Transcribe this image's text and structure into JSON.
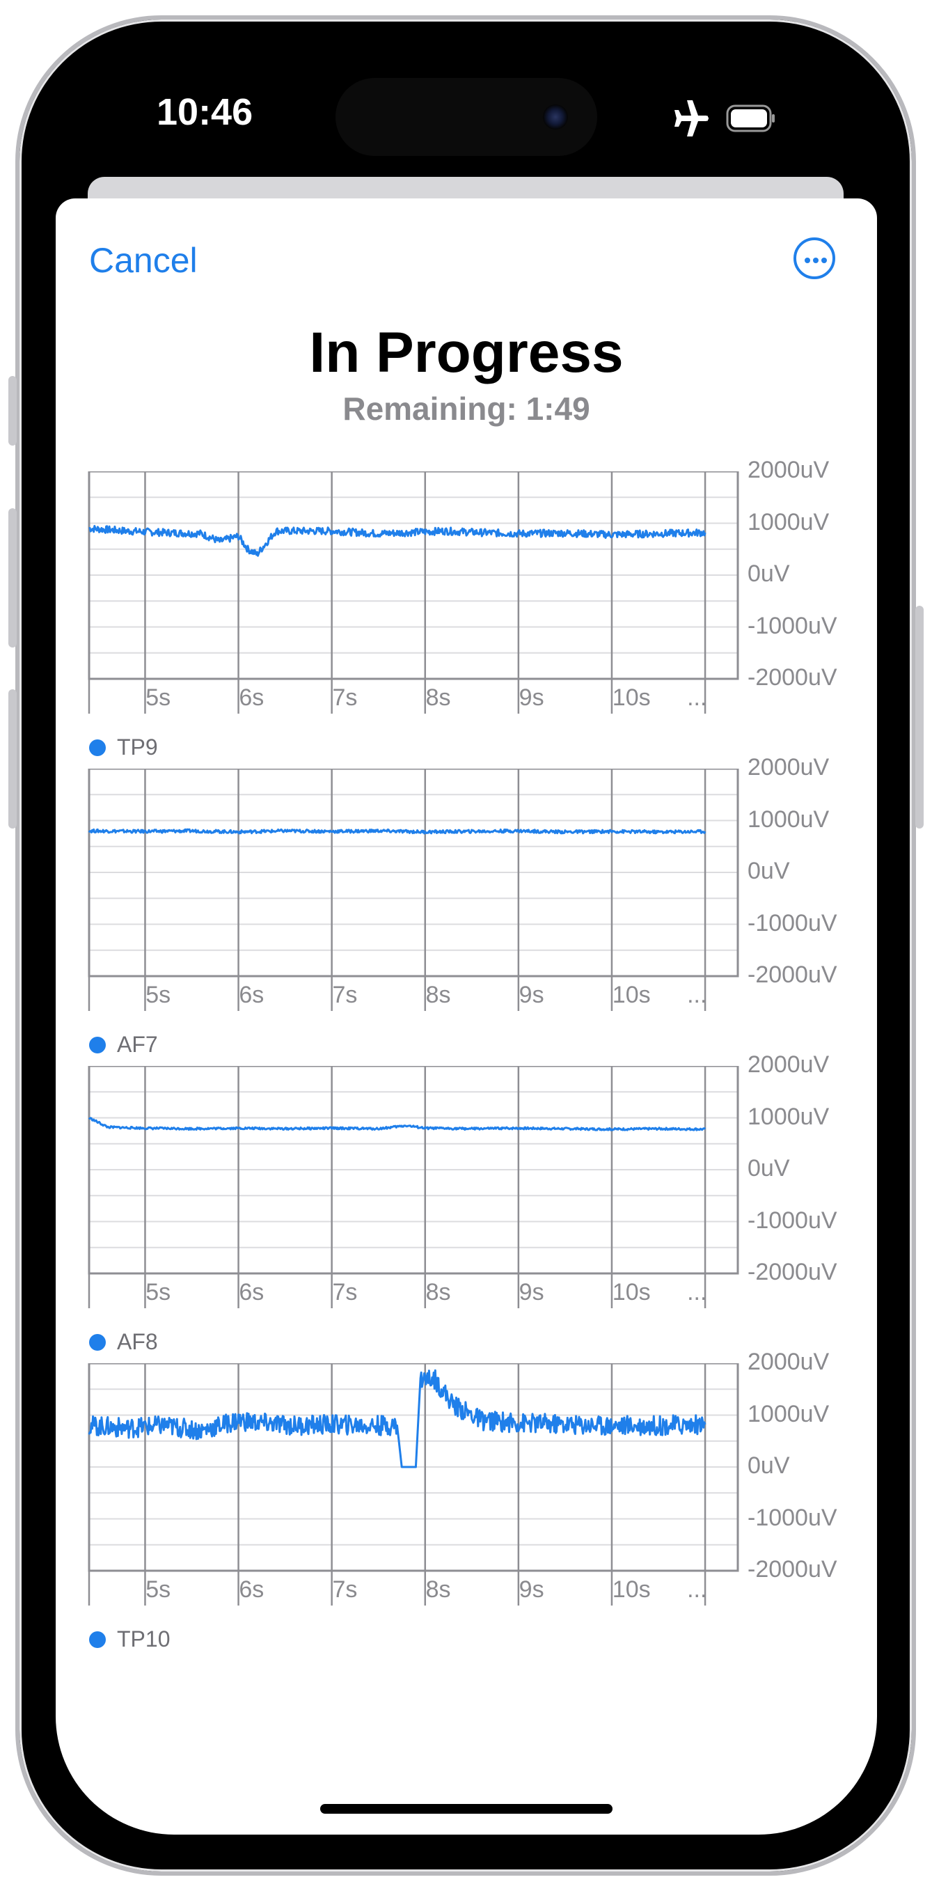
{
  "status": {
    "time": "10:46",
    "icons": [
      "airplane-icon",
      "battery-icon"
    ]
  },
  "nav": {
    "cancel_label": "Cancel",
    "more_icon": "ellipsis-circle-icon"
  },
  "header": {
    "title": "In Progress",
    "subtitle": "Remaining: 1:49"
  },
  "accent_color": "#1f7fea",
  "charts": [
    {
      "channel": "TP9"
    },
    {
      "channel": "AF7"
    },
    {
      "channel": "AF8"
    },
    {
      "channel": "TP10"
    }
  ],
  "chart_data": [
    {
      "type": "line",
      "x_ticks": [
        "5s",
        "6s",
        "7s",
        "8s",
        "9s",
        "10s",
        "..."
      ],
      "y_ticks": [
        "2000uV",
        "1000uV",
        "0uV",
        "-1000uV",
        "-2000uV"
      ],
      "ylim": [
        -2000,
        2000
      ],
      "grid": true,
      "series": [
        {
          "name": "TP9",
          "color": "#1f7fea",
          "x": [
            4.4,
            4.8,
            5.2,
            5.6,
            5.8,
            6.0,
            6.1,
            6.2,
            6.4,
            7.0,
            7.5,
            7.8,
            8.2,
            8.6,
            9.0,
            9.5,
            10.0,
            10.5,
            11.0
          ],
          "y": [
            900,
            850,
            820,
            800,
            650,
            750,
            500,
            400,
            850,
            850,
            800,
            820,
            850,
            820,
            800,
            810,
            780,
            800,
            820
          ]
        }
      ]
    },
    {
      "type": "line",
      "x_ticks": [
        "5s",
        "6s",
        "7s",
        "8s",
        "9s",
        "10s",
        "..."
      ],
      "y_ticks": [
        "2000uV",
        "1000uV",
        "0uV",
        "-1000uV",
        "-2000uV"
      ],
      "ylim": [
        -2000,
        2000
      ],
      "grid": true,
      "series": [
        {
          "name": "AF7",
          "color": "#1f7fea",
          "x": [
            4.4,
            5.0,
            5.5,
            6.0,
            6.5,
            7.0,
            7.5,
            8.0,
            8.5,
            9.0,
            9.5,
            10.0,
            10.5,
            11.0
          ],
          "y": [
            800,
            790,
            800,
            780,
            800,
            790,
            800,
            780,
            790,
            800,
            780,
            790,
            780,
            790
          ]
        }
      ]
    },
    {
      "type": "line",
      "x_ticks": [
        "5s",
        "6s",
        "7s",
        "8s",
        "9s",
        "10s",
        "..."
      ],
      "y_ticks": [
        "2000uV",
        "1000uV",
        "0uV",
        "-1000uV",
        "-2000uV"
      ],
      "ylim": [
        -2000,
        2000
      ],
      "grid": true,
      "series": [
        {
          "name": "AF8",
          "color": "#1f7fea",
          "x": [
            4.4,
            4.6,
            5.0,
            5.5,
            6.0,
            6.5,
            7.0,
            7.5,
            7.8,
            8.0,
            8.5,
            9.0,
            9.5,
            10.0,
            10.5,
            11.0
          ],
          "y": [
            1000,
            820,
            800,
            790,
            800,
            790,
            800,
            790,
            850,
            800,
            790,
            800,
            790,
            780,
            790,
            780
          ]
        }
      ]
    },
    {
      "type": "line",
      "x_ticks": [
        "5s",
        "6s",
        "7s",
        "8s",
        "9s",
        "10s",
        "..."
      ],
      "y_ticks": [
        "2000uV",
        "1000uV",
        "0uV",
        "-1000uV",
        "-2000uV"
      ],
      "ylim": [
        -2000,
        2000
      ],
      "grid": true,
      "series": [
        {
          "name": "TP10",
          "color": "#1f7fea",
          "x": [
            4.4,
            4.8,
            5.2,
            5.6,
            6.0,
            6.2,
            6.6,
            7.0,
            7.4,
            7.7,
            7.75,
            7.9,
            7.95,
            8.1,
            8.3,
            8.6,
            9.0,
            9.5,
            10.0,
            10.5,
            11.0
          ],
          "y": [
            800,
            750,
            800,
            700,
            900,
            850,
            800,
            820,
            800,
            800,
            0,
            0,
            1700,
            1700,
            1200,
            900,
            850,
            820,
            800,
            800,
            820
          ]
        }
      ]
    }
  ]
}
